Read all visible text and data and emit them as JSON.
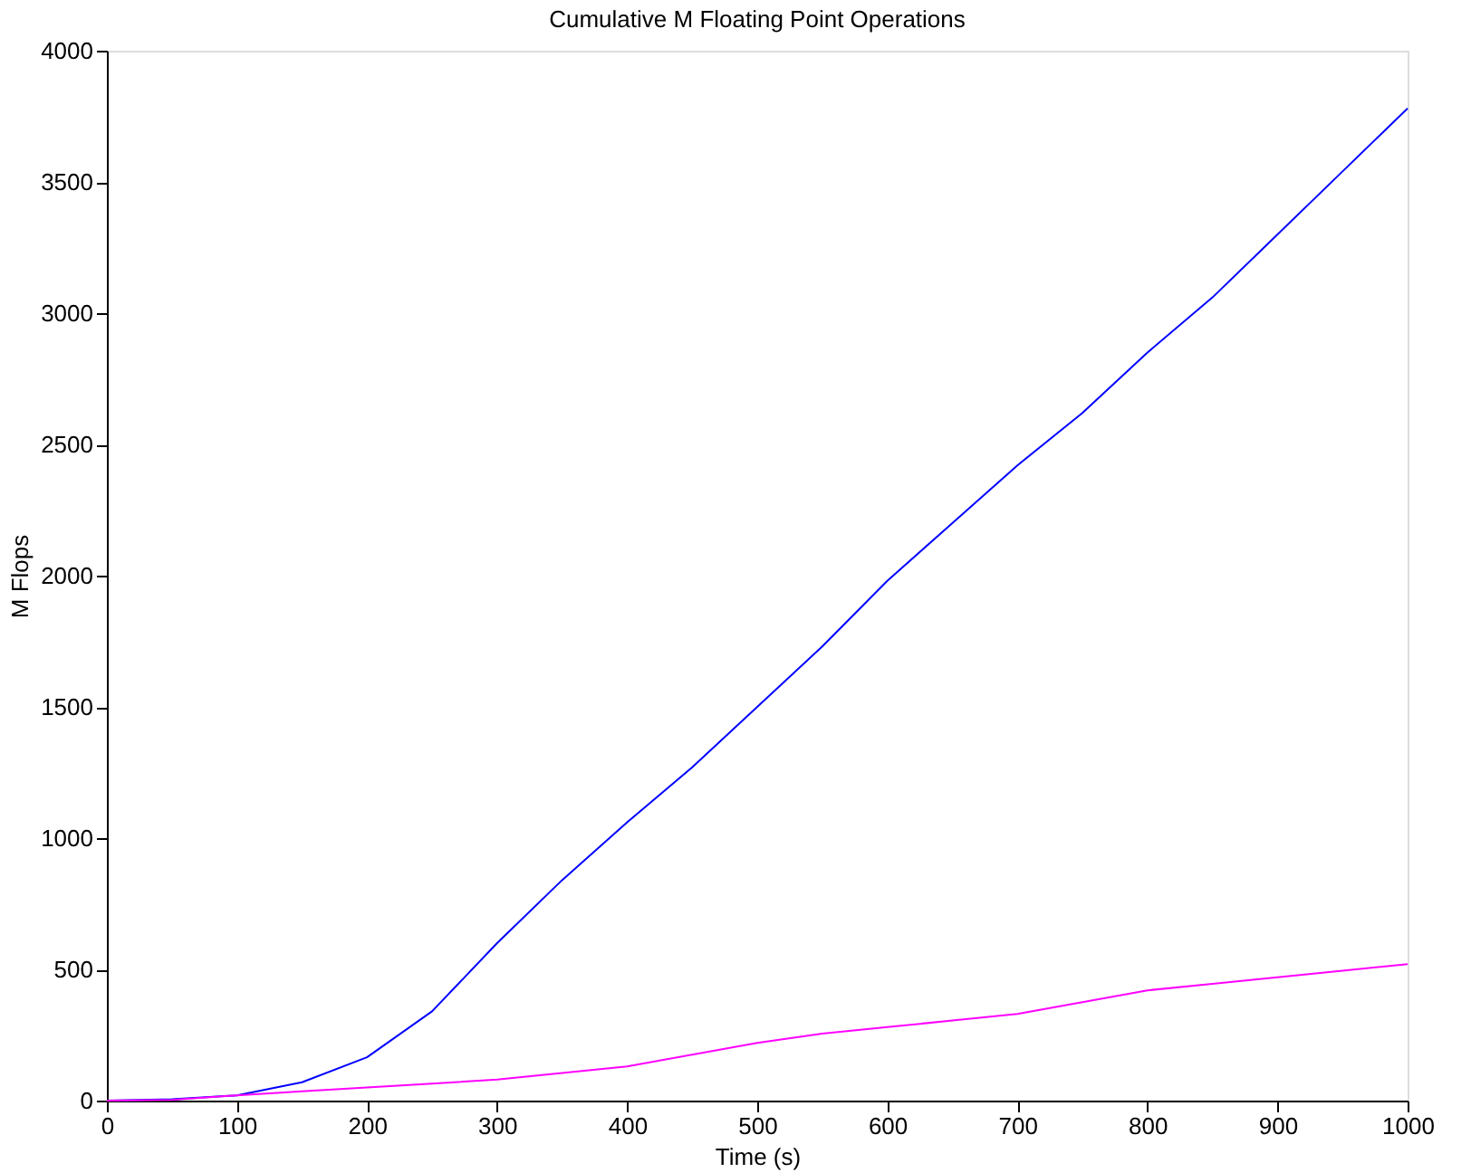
{
  "chart_data": {
    "type": "line",
    "title": "Cumulative M Floating Point Operations",
    "xlabel": "Time (s)",
    "ylabel": "M Flops",
    "xlim": [
      0,
      1000
    ],
    "xticks": [
      0,
      100,
      200,
      300,
      400,
      500,
      600,
      700,
      800,
      900,
      1000
    ],
    "ylim": [
      0,
      4000
    ],
    "yticks": [
      0,
      500,
      1000,
      1500,
      2000,
      2500,
      3000,
      3500,
      4000
    ],
    "grid": false,
    "legend": false,
    "series": [
      {
        "color": "#0000ff",
        "x": [
          0,
          50,
          100,
          150,
          200,
          250,
          300,
          350,
          400,
          450,
          500,
          550,
          600,
          650,
          700,
          750,
          800,
          850,
          900,
          950,
          1000
        ],
        "values": [
          0,
          5,
          20,
          70,
          165,
          340,
          600,
          840,
          1060,
          1270,
          1500,
          1730,
          1980,
          2200,
          2420,
          2620,
          2850,
          3060,
          3300,
          3540,
          3780
        ]
      },
      {
        "color": "#ff00ff",
        "x": [
          0,
          50,
          100,
          150,
          200,
          250,
          300,
          350,
          400,
          450,
          500,
          550,
          600,
          650,
          700,
          750,
          800,
          850,
          900,
          950,
          1000
        ],
        "values": [
          0,
          3,
          20,
          35,
          50,
          65,
          80,
          105,
          130,
          175,
          220,
          255,
          280,
          305,
          330,
          375,
          420,
          445,
          470,
          495,
          520
        ]
      }
    ]
  }
}
